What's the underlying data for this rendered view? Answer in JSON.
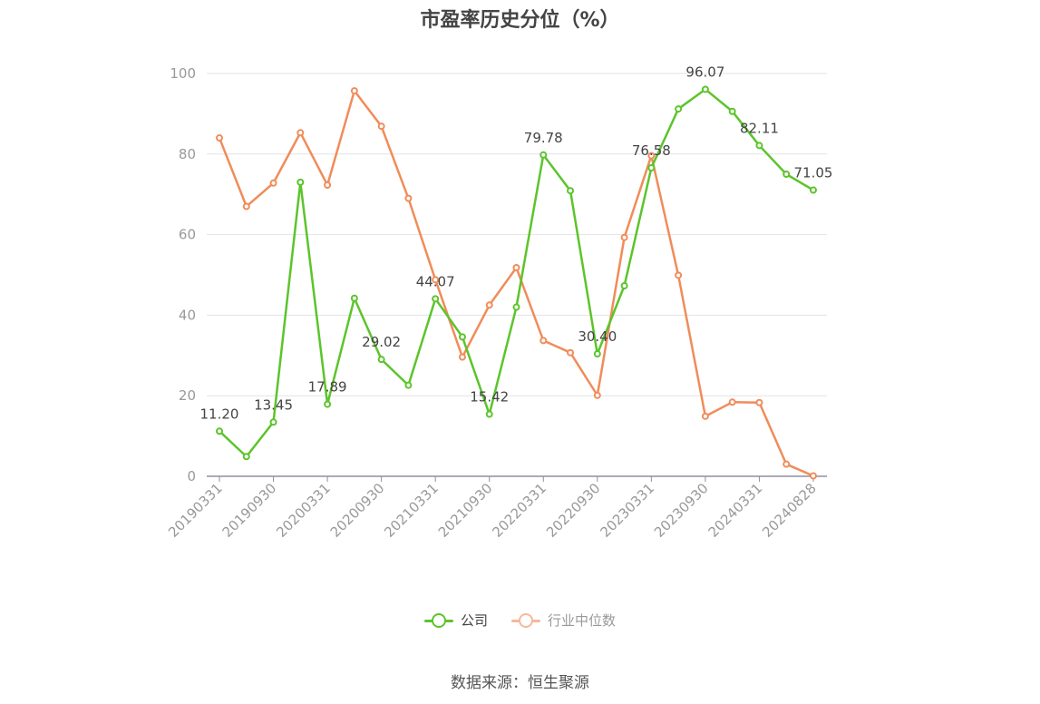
{
  "title": "市盈率历史分位（%）",
  "source": "数据来源：恒生聚源",
  "colors": {
    "company": "#5cc42b",
    "industry": "#f08c5a",
    "industry_legend": "#f6b89b",
    "axis": "#8f8f9f",
    "grid": "#e3e3e8"
  },
  "chart_data": {
    "type": "line",
    "x": [
      "20190331",
      "20190630",
      "20190930",
      "20191231",
      "20200331",
      "20200630",
      "20200930",
      "20201231",
      "20210331",
      "20210630",
      "20210930",
      "20211231",
      "20220331",
      "20220630",
      "20220930",
      "20221231",
      "20230331",
      "20230630",
      "20230930",
      "20231231",
      "20240331",
      "20240630",
      "20240828"
    ],
    "x_tick_labels": [
      "20190331",
      "20190930",
      "20200331",
      "20200930",
      "20210331",
      "20210930",
      "20220331",
      "20220930",
      "20230331",
      "20230930",
      "20240331",
      "20240828"
    ],
    "ylim": [
      0,
      100
    ],
    "y_ticks": [
      0,
      20,
      40,
      60,
      80,
      100
    ],
    "grid": true,
    "legend_position": "bottom",
    "series": [
      {
        "name": "公司",
        "values": [
          11.2,
          4.9,
          13.45,
          73.0,
          17.89,
          44.2,
          29.02,
          22.6,
          44.07,
          34.6,
          15.42,
          42.0,
          79.78,
          70.9,
          30.4,
          47.3,
          76.58,
          91.2,
          96.07,
          90.6,
          82.11,
          75.0,
          71.05
        ]
      },
      {
        "name": "行业中位数",
        "values": [
          84.0,
          67.0,
          72.8,
          85.3,
          72.3,
          95.7,
          86.9,
          69.0,
          48.8,
          29.6,
          42.5,
          51.8,
          33.7,
          30.7,
          20.1,
          59.3,
          79.6,
          49.9,
          14.9,
          18.4,
          18.3,
          3.0,
          0.1
        ]
      }
    ],
    "data_labels": [
      {
        "series": 0,
        "index": 0,
        "text": "11.20"
      },
      {
        "series": 0,
        "index": 2,
        "text": "13.45"
      },
      {
        "series": 0,
        "index": 4,
        "text": "17.89"
      },
      {
        "series": 0,
        "index": 6,
        "text": "29.02"
      },
      {
        "series": 0,
        "index": 8,
        "text": "44.07"
      },
      {
        "series": 0,
        "index": 10,
        "text": "15.42"
      },
      {
        "series": 0,
        "index": 12,
        "text": "79.78"
      },
      {
        "series": 0,
        "index": 14,
        "text": "30.40"
      },
      {
        "series": 0,
        "index": 16,
        "text": "76.58"
      },
      {
        "series": 0,
        "index": 18,
        "text": "96.07"
      },
      {
        "series": 0,
        "index": 20,
        "text": "82.11"
      },
      {
        "series": 0,
        "index": 22,
        "text": "71.05"
      }
    ]
  }
}
